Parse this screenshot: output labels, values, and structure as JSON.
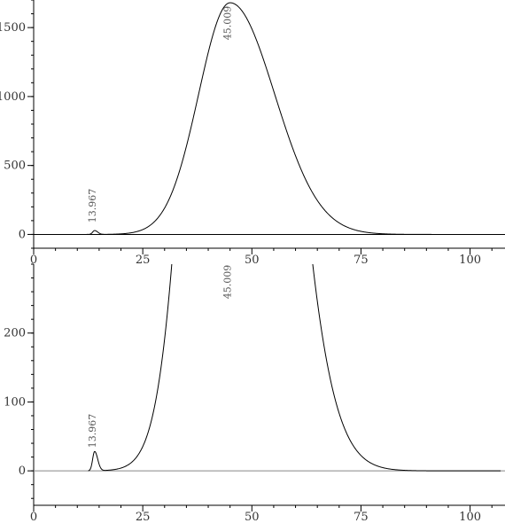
{
  "chart_data": [
    {
      "type": "line",
      "title": "",
      "xlabel": "",
      "ylabel": "",
      "xlim": [
        0,
        108
      ],
      "ylim": [
        -100,
        1700
      ],
      "x_ticks": [
        0,
        25,
        50,
        75,
        100
      ],
      "y_ticks": [
        0,
        500,
        1000,
        1500
      ],
      "grid": false,
      "series": [
        {
          "color": "#000000",
          "peaks": [
            {
              "center": 45.009,
              "height": 1680,
              "sigma_left": 7.2,
              "sigma_right": 10.2
            },
            {
              "center": 13.967,
              "height": 28,
              "sigma_left": 0.45,
              "sigma_right": 0.7
            }
          ]
        }
      ],
      "baseline_color": "#000000",
      "annotations": [
        {
          "text": "45.009",
          "x": 45.009
        },
        {
          "text": "13.967",
          "x": 13.967
        }
      ]
    },
    {
      "type": "line",
      "title": "",
      "xlabel": "",
      "ylabel": "",
      "xlim": [
        0,
        108
      ],
      "ylim": [
        -50,
        300
      ],
      "x_ticks": [
        0,
        25,
        50,
        75,
        100
      ],
      "y_ticks": [
        0,
        100,
        200
      ],
      "grid": false,
      "series": [
        {
          "color": "#000000",
          "peaks": [
            {
              "center": 45.009,
              "height": 1680,
              "sigma_left": 7.2,
              "sigma_right": 10.2
            },
            {
              "center": 13.967,
              "height": 28,
              "sigma_left": 0.45,
              "sigma_right": 0.7
            }
          ]
        }
      ],
      "baseline_color": "#888888",
      "annotations": [
        {
          "text": "45.009",
          "x": 45.009
        },
        {
          "text": "13.967",
          "x": 13.967
        }
      ]
    }
  ]
}
